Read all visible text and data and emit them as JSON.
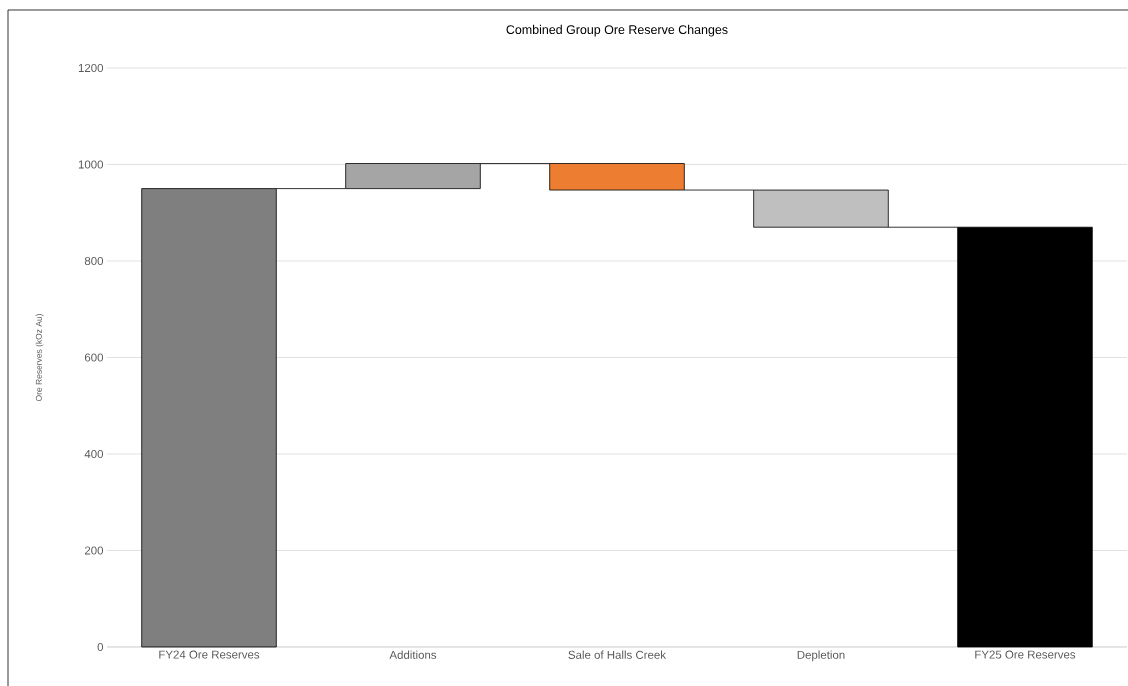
{
  "chart_data": {
    "type": "bar",
    "title": "Combined Group Ore Reserve Changes",
    "ylabel": "Ore Reserves (kOz Au)",
    "categories": [
      "FY24 Ore Reserves",
      "Additions",
      "Sale of Halls Creek",
      "Depletion",
      "FY25 Ore Reserves"
    ],
    "values": [
      950,
      52,
      -55,
      -77,
      870
    ],
    "base": [
      0,
      950,
      1002,
      947,
      0
    ],
    "colors": [
      "#7f7f7f",
      "#a5a5a5",
      "#ed7d31",
      "#bfbfbf",
      "#000000"
    ],
    "ylim": [
      0,
      1200
    ],
    "yticks": [
      0,
      200,
      400,
      600,
      800,
      1000,
      1200
    ],
    "grid": "y"
  }
}
